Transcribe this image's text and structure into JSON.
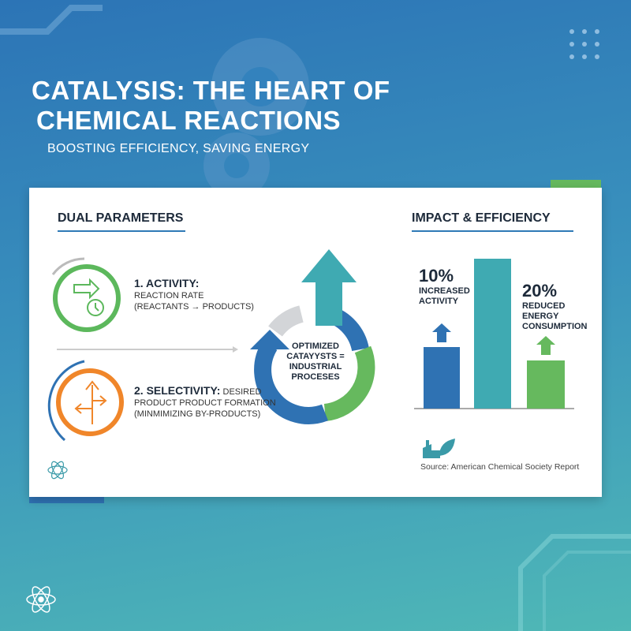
{
  "header": {
    "title_line1": "CATALYSIS: THE HEART OF",
    "title_line2": "CHEMICAL REACTIONS",
    "subtitle": "BOOSTING EFFICIENCY, SAVING ENERGY"
  },
  "left": {
    "heading": "DUAL PARAMETERS",
    "activity": {
      "title": "1. ACTIVITY:",
      "line1": "REACTION RATE",
      "line2": "(REACTANTS → PRODUCTS)",
      "color": "#5cb85c"
    },
    "selectivity": {
      "title": "2. SELECTIVITY:",
      "line1_rest": " DESIRED",
      "line2": "PRODUCT PRODUCT FORMATION",
      "line3": "(MINMIMIZING BY-PRODUCTS)",
      "color": "#f0862a"
    }
  },
  "center": {
    "line1": "OPTIMIZED",
    "line2": "CATAYYSTS =",
    "line3": "INDUSTRIAL",
    "line4": "PROCESES"
  },
  "right": {
    "heading": "IMPACT & EFFICIENCY",
    "stat1": {
      "value": "10%",
      "line1": "INCREASED",
      "line2": "ACTIVITY"
    },
    "stat2": {
      "value": "20%",
      "line1": "REDUCED",
      "line2": "ENERGY",
      "line3": "CONSUMPTION"
    },
    "source": "Source: American Chemical Society Report"
  },
  "colors": {
    "blue": "#2f72b3",
    "teal": "#3faab2",
    "green": "#66b95e",
    "orange": "#f0862a"
  }
}
